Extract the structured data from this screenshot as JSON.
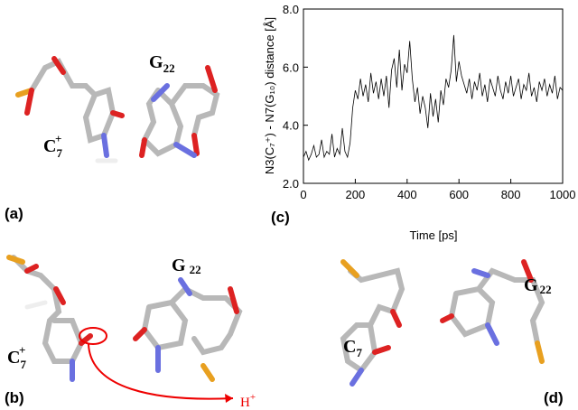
{
  "panels": {
    "a": "(a)",
    "b": "(b)",
    "c": "(c)",
    "d": "(d)"
  },
  "labels": {
    "a_c7": {
      "base": "C",
      "sub": "7",
      "sup": "+"
    },
    "a_g22": {
      "base": "G",
      "sub": "22"
    },
    "b_c7": {
      "base": "C",
      "sub": "7",
      "sup": "+"
    },
    "b_g22": {
      "base": "G",
      "sub": "22"
    },
    "b_h": {
      "base": "H",
      "sup": "+"
    },
    "d_c7": {
      "base": "C",
      "sub": "7"
    },
    "d_g22": {
      "base": "G",
      "sub": "22"
    }
  },
  "chart_data": {
    "type": "line",
    "xlabel": "Time [ps]",
    "ylabel": "N3(C₇⁺) - N7(G₁₀) distance [Å]",
    "xlim": [
      0,
      1000
    ],
    "xticks": [
      0,
      200,
      400,
      600,
      800,
      1000
    ],
    "ylim": [
      2,
      8
    ],
    "yticks": [
      {
        "value": 2,
        "label": "2.0"
      },
      {
        "value": 4,
        "label": "4.0"
      },
      {
        "value": 6,
        "label": "6.0"
      },
      {
        "value": 8,
        "label": "8.0"
      }
    ],
    "color": "#000000",
    "x": [
      0,
      10,
      20,
      30,
      40,
      50,
      60,
      70,
      80,
      90,
      100,
      110,
      120,
      130,
      140,
      150,
      160,
      170,
      180,
      190,
      200,
      210,
      220,
      230,
      240,
      250,
      260,
      270,
      280,
      290,
      300,
      310,
      320,
      330,
      340,
      350,
      360,
      370,
      380,
      390,
      400,
      410,
      420,
      430,
      440,
      450,
      460,
      470,
      480,
      490,
      500,
      510,
      520,
      530,
      540,
      550,
      560,
      570,
      580,
      590,
      600,
      610,
      620,
      630,
      640,
      650,
      660,
      670,
      680,
      690,
      700,
      710,
      720,
      730,
      740,
      750,
      760,
      770,
      780,
      790,
      800,
      810,
      820,
      830,
      840,
      850,
      860,
      870,
      880,
      890,
      900,
      910,
      920,
      930,
      940,
      950,
      960,
      970,
      980,
      990,
      1000
    ],
    "values": [
      2.9,
      3.1,
      2.8,
      3.0,
      3.3,
      2.9,
      3.0,
      3.5,
      2.9,
      3.1,
      3.0,
      3.7,
      2.9,
      3.2,
      3.0,
      3.9,
      3.1,
      2.9,
      3.4,
      4.6,
      5.2,
      4.9,
      5.6,
      5.0,
      5.4,
      4.8,
      5.8,
      5.1,
      5.5,
      4.9,
      5.6,
      5.0,
      5.7,
      4.6,
      5.9,
      6.3,
      5.3,
      6.6,
      5.2,
      6.1,
      5.8,
      6.9,
      5.6,
      4.8,
      5.3,
      4.4,
      5.0,
      4.6,
      3.9,
      5.1,
      4.3,
      4.9,
      4.1,
      5.2,
      4.7,
      5.6,
      5.3,
      5.9,
      7.1,
      5.5,
      6.2,
      5.7,
      5.4,
      5.1,
      5.6,
      4.9,
      5.5,
      5.2,
      5.8,
      5.0,
      5.4,
      4.8,
      5.6,
      5.3,
      5.0,
      5.7,
      5.2,
      4.9,
      5.5,
      5.1,
      5.7,
      5.0,
      5.3,
      5.6,
      4.9,
      5.4,
      5.2,
      5.8,
      5.0,
      5.3,
      4.8,
      5.5,
      5.2,
      5.6,
      5.0,
      5.4,
      5.1,
      5.7,
      4.9,
      5.3,
      5.2
    ]
  }
}
